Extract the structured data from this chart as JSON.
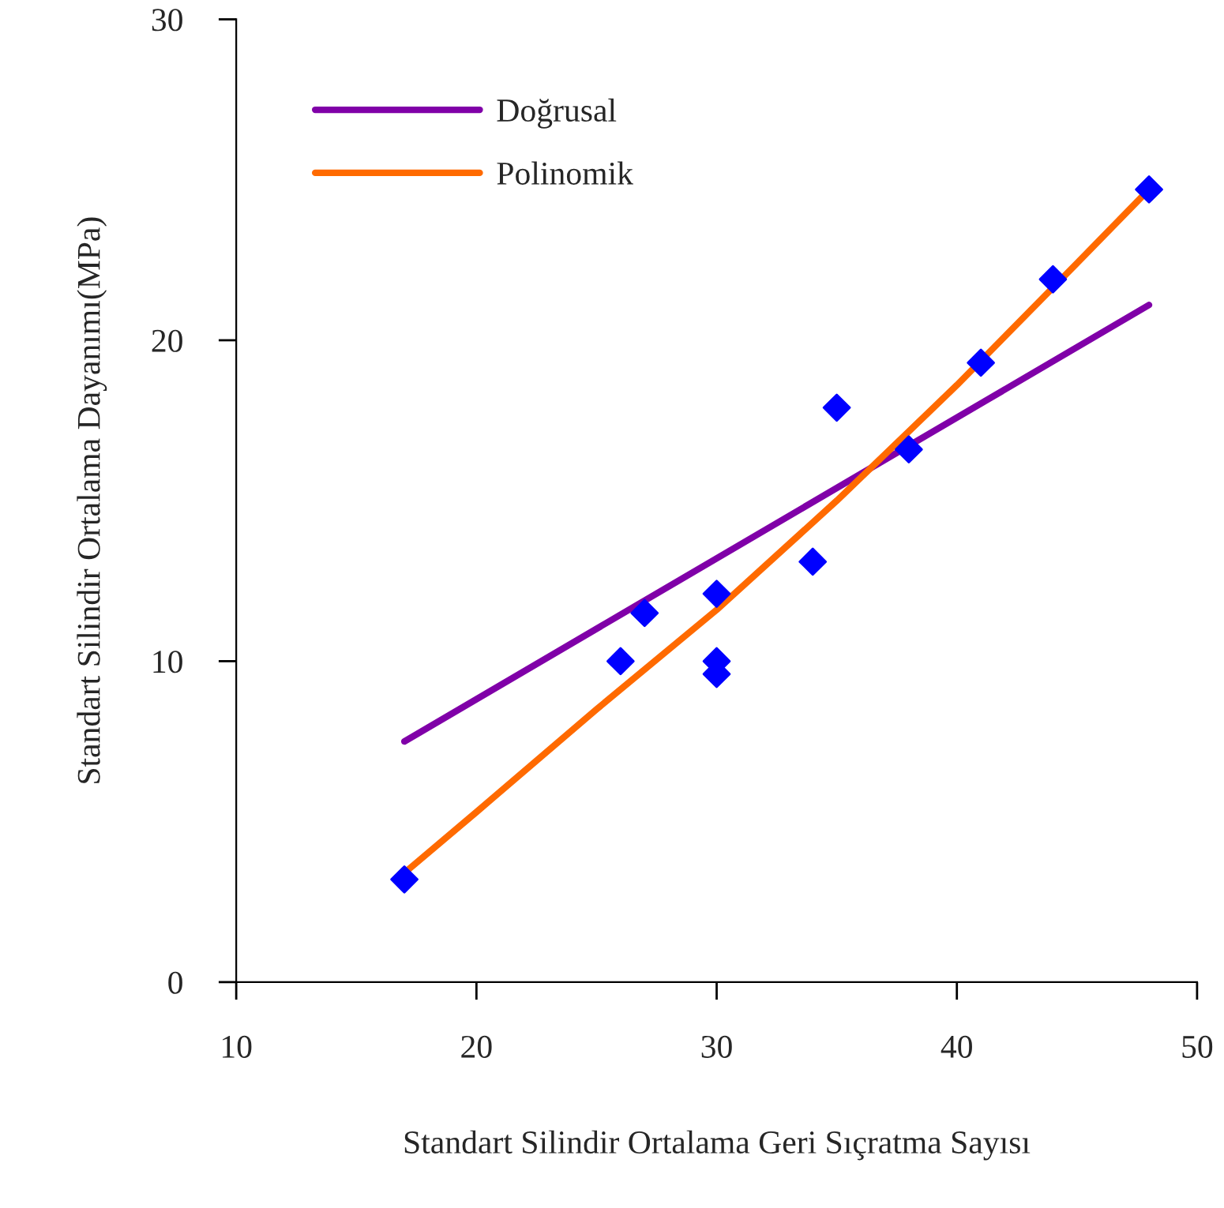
{
  "chart_data": {
    "type": "scatter",
    "xlabel": "Standart Silindir Ortalama Geri Sıçratma Sayısı",
    "ylabel": "Standart Silindir Ortalama Dayanımı(MPa)",
    "xlim": [
      10,
      50
    ],
    "xticks": [
      10,
      20,
      30,
      40,
      50
    ],
    "ylim": [
      0,
      30
    ],
    "yticks": [
      0,
      10,
      20,
      30
    ],
    "grid": false,
    "legend": "top left",
    "series": [
      {
        "type": "line",
        "name": "Doğrusal",
        "color": "#8000a8",
        "x": [
          17,
          48
        ],
        "values": [
          7.5,
          21.1
        ],
        "marker": "none",
        "line_style": "solid"
      },
      {
        "type": "line",
        "name": "Polinomik",
        "color": "#ff6a00",
        "x": [
          17,
          20,
          25,
          30,
          35,
          40,
          45,
          48
        ],
        "values": [
          3.4,
          5.3,
          8.5,
          11.6,
          15.0,
          18.6,
          22.4,
          24.7
        ],
        "marker": "none",
        "line_style": "solid"
      },
      {
        "color": "#0000ff",
        "marker": "diamond",
        "x": [
          17,
          26,
          27,
          30,
          30,
          30,
          34,
          35,
          38,
          41,
          44,
          48
        ],
        "values": [
          3.2,
          10.0,
          11.5,
          12.1,
          10.0,
          9.6,
          13.1,
          17.9,
          16.6,
          19.3,
          21.9,
          24.7
        ]
      }
    ]
  }
}
